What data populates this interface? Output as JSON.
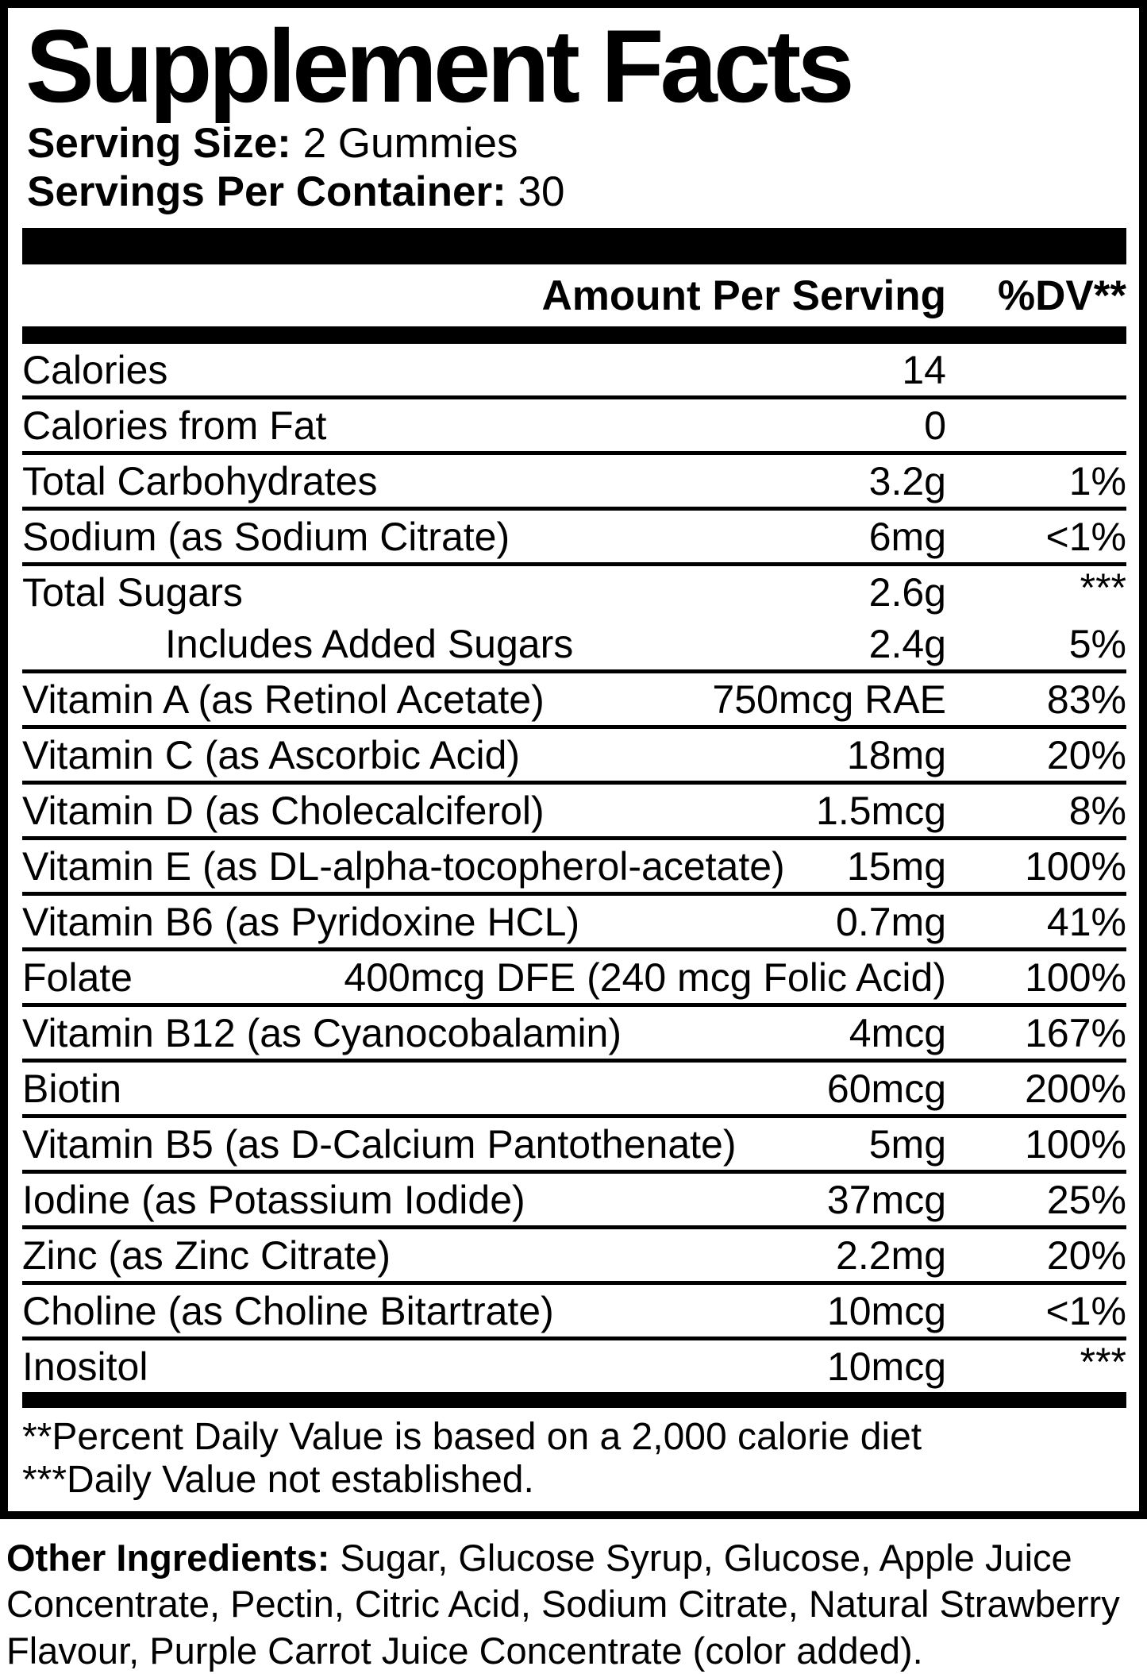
{
  "title": "Supplement Facts",
  "serving": {
    "serving_size_label": "Serving Size:",
    "serving_size_value": " 2 Gummies",
    "servings_per_container_label": "Servings Per Container:",
    "servings_per_container_value": " 30"
  },
  "header": {
    "amount_label": "Amount Per Serving",
    "dv_label": "%DV**"
  },
  "rows": [
    {
      "name": "Calories",
      "amount": "14",
      "dv": ""
    },
    {
      "name": "Calories from Fat",
      "amount": "0",
      "dv": ""
    },
    {
      "name": "Total Carbohydrates",
      "amount": "3.2g",
      "dv": "1%"
    },
    {
      "name": "Sodium (as Sodium Citrate)",
      "amount": "6mg",
      "dv": "<1%"
    },
    {
      "name": "Total Sugars",
      "amount": "2.6g",
      "dv": "***"
    },
    {
      "name": "Includes Added Sugars",
      "amount": "2.4g",
      "dv": "5%"
    },
    {
      "name": "Vitamin A (as Retinol Acetate)",
      "amount": "750mcg RAE",
      "dv": "83%"
    },
    {
      "name": "Vitamin C (as Ascorbic Acid)",
      "amount": "18mg",
      "dv": "20%"
    },
    {
      "name": "Vitamin D (as Cholecalciferol)",
      "amount": "1.5mcg",
      "dv": "8%"
    },
    {
      "name": "Vitamin E (as DL-alpha-tocopherol-acetate)",
      "amount": "15mg",
      "dv": "100%"
    },
    {
      "name": "Vitamin B6 (as Pyridoxine HCL)",
      "amount": "0.7mg",
      "dv": "41%"
    },
    {
      "name": "Folate",
      "amount": "400mcg DFE (240 mcg Folic Acid)",
      "dv": "100%"
    },
    {
      "name": "Vitamin B12 (as Cyanocobalamin)",
      "amount": "4mcg",
      "dv": "167%"
    },
    {
      "name": "Biotin",
      "amount": "60mcg",
      "dv": "200%"
    },
    {
      "name": "Vitamin B5 (as D-Calcium Pantothenate)",
      "amount": "5mg",
      "dv": "100%"
    },
    {
      "name": "Iodine (as Potassium Iodide)",
      "amount": "37mcg",
      "dv": "25%"
    },
    {
      "name": "Zinc (as Zinc Citrate)",
      "amount": "2.2mg",
      "dv": "20%"
    },
    {
      "name": "Choline (as Choline Bitartrate)",
      "amount": "10mcg",
      "dv": "<1%"
    },
    {
      "name": "Inositol",
      "amount": "10mcg",
      "dv": "***"
    }
  ],
  "footnotes": [
    "**Percent Daily Value is based on a 2,000 calorie diet",
    "***Daily Value not established."
  ],
  "other_ingredients": {
    "label": "Other Ingredients:",
    "text": " Sugar, Glucose Syrup, Glucose, Apple Juice Concentrate, Pectin, Citric Acid, Sodium Citrate, Natural Strawberry Flavour, Purple Carrot Juice Concentrate (color added)."
  },
  "colors": {
    "text": "#000000",
    "background": "#ffffff"
  }
}
